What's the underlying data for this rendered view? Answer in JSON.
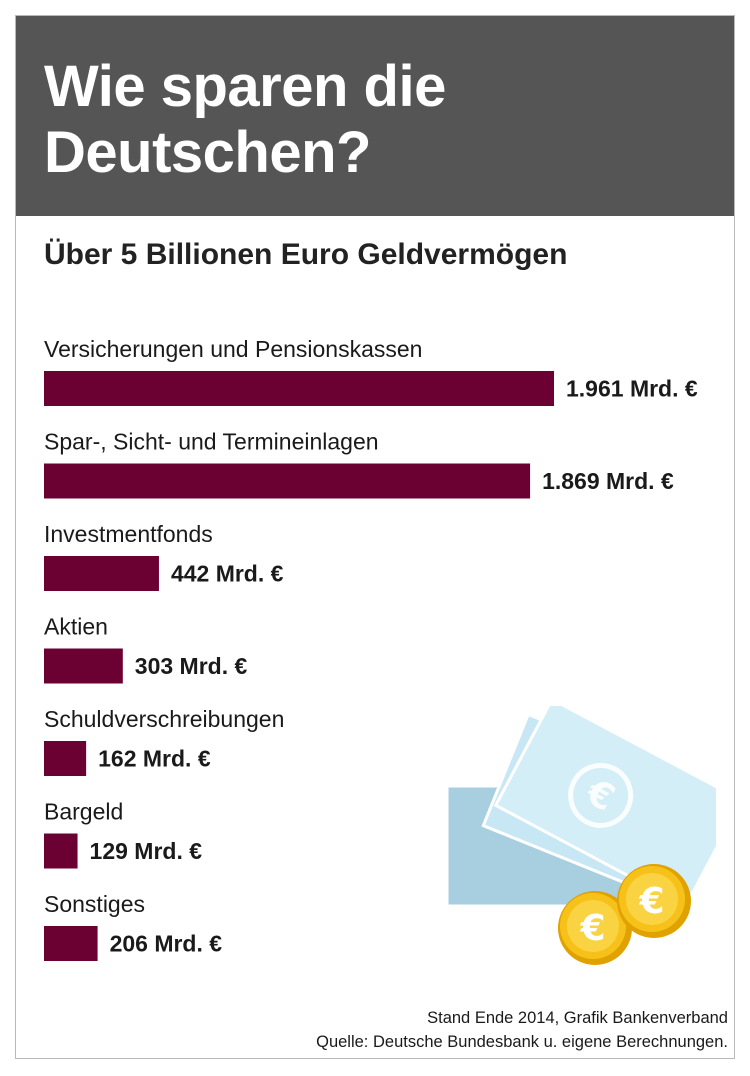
{
  "header": {
    "title": "Wie sparen die Deutschen?"
  },
  "subtitle": "Über 5 Billionen Euro Geldvermögen",
  "chart_data": {
    "type": "bar",
    "orientation": "horizontal",
    "title": "Wie sparen die Deutschen?",
    "subtitle": "Über 5 Billionen Euro Geldvermögen",
    "categories": [
      "Versicherungen und Pensionskassen",
      "Spar-, Sicht- und Termineinlagen",
      "Investmentfonds",
      "Aktien",
      "Schuldverschreibungen",
      "Bargeld",
      "Sonstiges"
    ],
    "values": [
      1961,
      1869,
      442,
      303,
      162,
      129,
      206
    ],
    "value_labels": [
      "1.961 Mrd. €",
      "1.869 Mrd. €",
      "442 Mrd. €",
      "303 Mrd. €",
      "162 Mrd. €",
      "129 Mrd. €",
      "206 Mrd. €"
    ],
    "unit": "Mrd. €",
    "bar_color": "#6b0033",
    "xlim": [
      0,
      1961
    ],
    "grid": false
  },
  "footer": {
    "line1": "Stand Ende 2014, Grafik Bankenverband",
    "line2": "Quelle: Deutsche Bundesbank u. eigene Berechnungen."
  },
  "illustration": {
    "icon": "euro-money-icon"
  },
  "colors": {
    "header_bg": "#555555",
    "bar": "#6b0033",
    "coin": "#f2b705",
    "note": "#bfe3f2"
  }
}
